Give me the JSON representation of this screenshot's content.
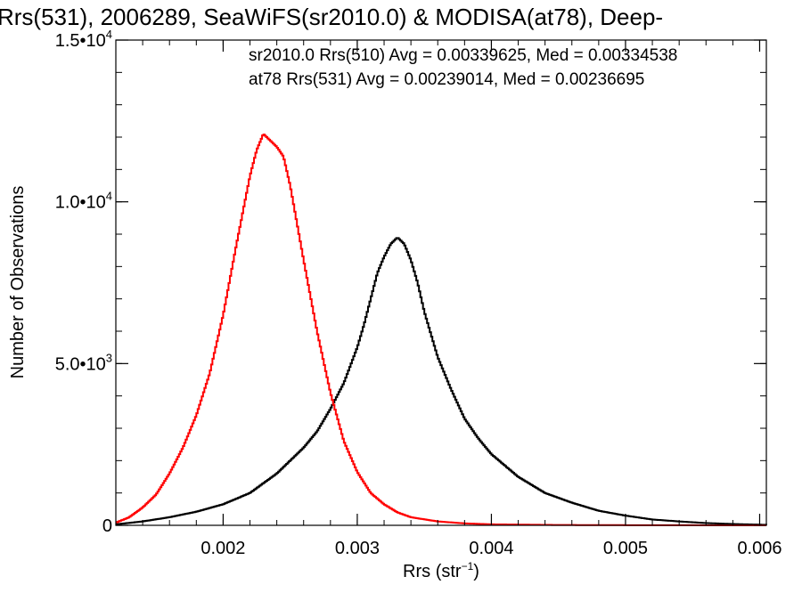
{
  "chart_data": {
    "type": "line",
    "title": "Rrs(531), 2006289, SeaWiFS(sr2010.0) & MODISA(at78), Deep-",
    "xlabel": "Rrs (str",
    "xlabel_sup": "−1",
    "xlabel_close": ")",
    "ylabel": "Number of Observations",
    "xlim": [
      0.0012,
      0.00605
    ],
    "ylim": [
      0,
      15000
    ],
    "x_ticks": [
      {
        "value": 0.002,
        "label": "0.002"
      },
      {
        "value": 0.003,
        "label": "0.003"
      },
      {
        "value": 0.004,
        "label": "0.004"
      },
      {
        "value": 0.005,
        "label": "0.005"
      },
      {
        "value": 0.006,
        "label": "0.006"
      }
    ],
    "y_ticks": [
      {
        "value": 0,
        "mantissa": "0",
        "exp": ""
      },
      {
        "value": 5000,
        "mantissa": "5.0•10",
        "exp": "3"
      },
      {
        "value": 10000,
        "mantissa": "1.0•10",
        "exp": "4"
      },
      {
        "value": 15000,
        "mantissa": "1.5•10",
        "exp": "4"
      }
    ],
    "annotations": [
      {
        "text": "sr2010.0 Rrs(510) Avg = 0.00339625, Med = 0.00334538",
        "color": "#000000"
      },
      {
        "text": "at78 Rrs(531) Avg = 0.00239014, Med = 0.00236695",
        "color": "#ff0000"
      }
    ],
    "series": [
      {
        "color": "#000000",
        "x": [
          0.0012,
          0.0014,
          0.0016,
          0.0018,
          0.002,
          0.0022,
          0.0024,
          0.0026,
          0.0027,
          0.0028,
          0.0029,
          0.003,
          0.00305,
          0.0031,
          0.00315,
          0.0032,
          0.00325,
          0.0033,
          0.00335,
          0.0034,
          0.00345,
          0.0035,
          0.0036,
          0.0037,
          0.0038,
          0.0039,
          0.004,
          0.0042,
          0.0044,
          0.0046,
          0.0048,
          0.005,
          0.0052,
          0.0054,
          0.0056,
          0.0058,
          0.00605
        ],
        "y": [
          30,
          120,
          250,
          420,
          650,
          1000,
          1600,
          2400,
          2900,
          3600,
          4400,
          5500,
          6200,
          7000,
          7800,
          8300,
          8700,
          8900,
          8700,
          8200,
          7500,
          6600,
          5200,
          4200,
          3300,
          2700,
          2200,
          1500,
          1000,
          700,
          450,
          300,
          180,
          120,
          70,
          40,
          15
        ]
      },
      {
        "color": "#ff0000",
        "x": [
          0.0012,
          0.0013,
          0.0014,
          0.0015,
          0.0016,
          0.0017,
          0.0018,
          0.0019,
          0.002,
          0.0021,
          0.0022,
          0.00225,
          0.0023,
          0.00235,
          0.0024,
          0.00245,
          0.0025,
          0.0026,
          0.0027,
          0.0028,
          0.0029,
          0.003,
          0.0031,
          0.0032,
          0.0033,
          0.0034,
          0.0036,
          0.0038,
          0.004,
          0.0045,
          0.005,
          0.0055,
          0.00605
        ],
        "y": [
          80,
          250,
          550,
          950,
          1600,
          2400,
          3400,
          4700,
          6500,
          8700,
          10800,
          11600,
          12100,
          11900,
          11700,
          11400,
          10500,
          8200,
          6000,
          4100,
          2600,
          1650,
          1000,
          650,
          400,
          250,
          120,
          60,
          30,
          10,
          5,
          2,
          0
        ]
      }
    ]
  }
}
